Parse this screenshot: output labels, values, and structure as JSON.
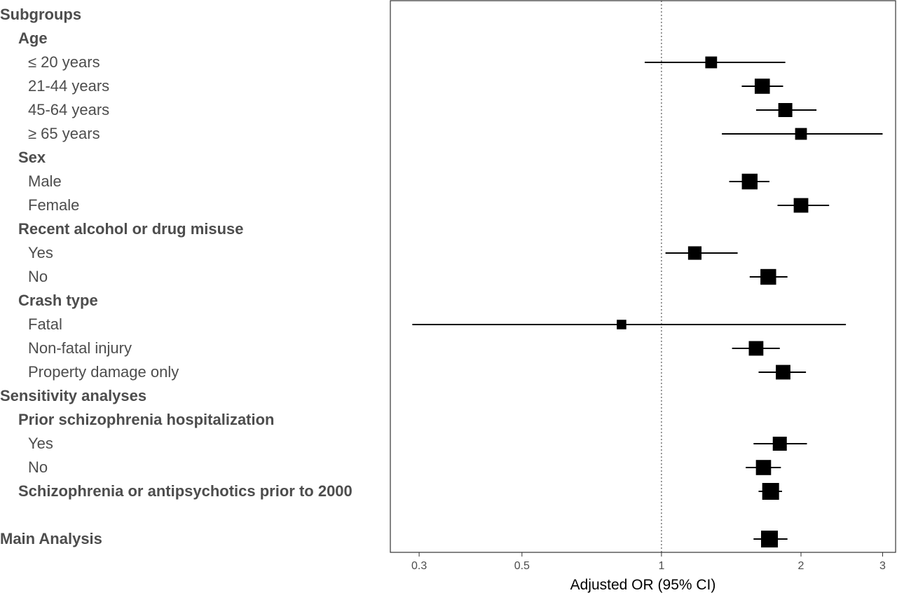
{
  "chart_data": {
    "type": "forest",
    "xlabel": "Adjusted OR (95% CI)",
    "xscale": "log",
    "xlim": [
      0.26,
      3.2
    ],
    "reference_line": 1,
    "xticks": [
      {
        "value": 0.3,
        "label": "0.3"
      },
      {
        "value": 0.5,
        "label": "0.5"
      },
      {
        "value": 1,
        "label": "1"
      },
      {
        "value": 2,
        "label": "2"
      },
      {
        "value": 3,
        "label": "3"
      }
    ],
    "rows": [
      {
        "label": "Subgroups",
        "level": 0,
        "header": true
      },
      {
        "label": "Age",
        "level": 1,
        "header": true
      },
      {
        "label": "≤ 20 years",
        "level": 2,
        "or": 1.28,
        "lo": 0.92,
        "hi": 1.85,
        "weight": 0.55
      },
      {
        "label": "21-44 years",
        "level": 2,
        "or": 1.65,
        "lo": 1.49,
        "hi": 1.83,
        "weight": 0.85
      },
      {
        "label": "45-64 years",
        "level": 2,
        "or": 1.85,
        "lo": 1.6,
        "hi": 2.16,
        "weight": 0.75
      },
      {
        "label": "≥ 65 years",
        "level": 2,
        "or": 2.0,
        "lo": 1.35,
        "hi": 3.0,
        "weight": 0.55
      },
      {
        "label": "Sex",
        "level": 1,
        "header": true
      },
      {
        "label": "Male",
        "level": 2,
        "or": 1.55,
        "lo": 1.4,
        "hi": 1.71,
        "weight": 0.9
      },
      {
        "label": "Female",
        "level": 2,
        "or": 2.0,
        "lo": 1.78,
        "hi": 2.3,
        "weight": 0.8
      },
      {
        "label": "Recent alcohol or drug misuse",
        "level": 1,
        "header": true
      },
      {
        "label": "Yes",
        "level": 2,
        "or": 1.18,
        "lo": 1.02,
        "hi": 1.46,
        "weight": 0.7
      },
      {
        "label": "No",
        "level": 2,
        "or": 1.7,
        "lo": 1.55,
        "hi": 1.87,
        "weight": 0.9
      },
      {
        "label": "Crash type",
        "level": 1,
        "header": true
      },
      {
        "label": "Fatal",
        "level": 2,
        "or": 0.82,
        "lo": 0.29,
        "hi": 2.5,
        "weight": 0.35
      },
      {
        "label": "Non-fatal injury",
        "level": 2,
        "or": 1.6,
        "lo": 1.42,
        "hi": 1.8,
        "weight": 0.8
      },
      {
        "label": "Property damage only",
        "level": 2,
        "or": 1.83,
        "lo": 1.62,
        "hi": 2.05,
        "weight": 0.8
      },
      {
        "label": "Sensitivity analyses",
        "level": 0,
        "header": true
      },
      {
        "label": "Prior schizophrenia hospitalization",
        "level": 1,
        "header": true
      },
      {
        "label": "Yes",
        "level": 2,
        "or": 1.8,
        "lo": 1.58,
        "hi": 2.06,
        "weight": 0.75
      },
      {
        "label": "No",
        "level": 2,
        "or": 1.66,
        "lo": 1.52,
        "hi": 1.81,
        "weight": 0.85
      },
      {
        "label": "Schizophrenia or antipsychotics prior to 2000",
        "level": 1,
        "header": true,
        "or": 1.72,
        "lo": 1.62,
        "hi": 1.82,
        "weight": 1.0
      },
      {
        "label": "",
        "level": 0,
        "spacer": true
      },
      {
        "label": "Main Analysis",
        "level": 0,
        "header": true,
        "or": 1.71,
        "lo": 1.58,
        "hi": 1.87,
        "weight": 1.0
      }
    ]
  }
}
